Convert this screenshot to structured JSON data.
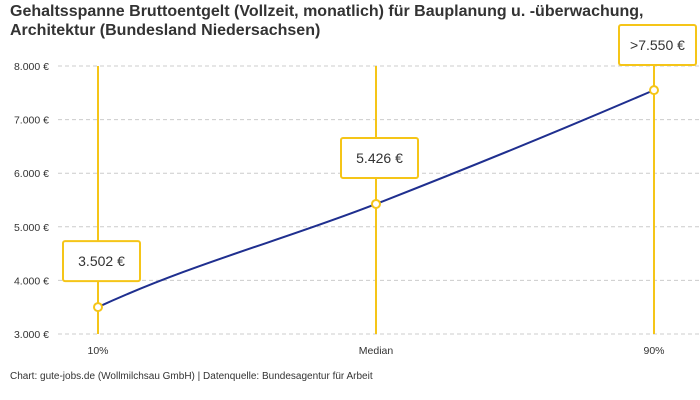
{
  "chart_data": {
    "type": "line",
    "title": "Gehaltsspanne Bruttoentgelt (Vollzeit, monatlich) für Bauplanung u. -überwachung, Architektur (Bundesland Niedersachsen)",
    "categories": [
      "10%",
      "Median",
      "90%"
    ],
    "values": [
      3502,
      5426,
      7550
    ],
    "data_labels": [
      "3.502 €",
      "5.426 €",
      ">7.550 €"
    ],
    "ylim": [
      3000,
      8000
    ],
    "yticks": [
      3000,
      4000,
      5000,
      6000,
      7000,
      8000
    ],
    "ytick_labels": [
      "3.000 €",
      "4.000 €",
      "5.000 €",
      "6.000 €",
      "7.000 €",
      "8.000 €"
    ],
    "grid": true,
    "colors": {
      "line": "#1f2f8f",
      "accent": "#f5c518",
      "grid": "#cccccc"
    }
  },
  "footer": "Chart: gute-jobs.de (Wollmilchsau GmbH) | Datenquelle: Bundesagentur für Arbeit"
}
